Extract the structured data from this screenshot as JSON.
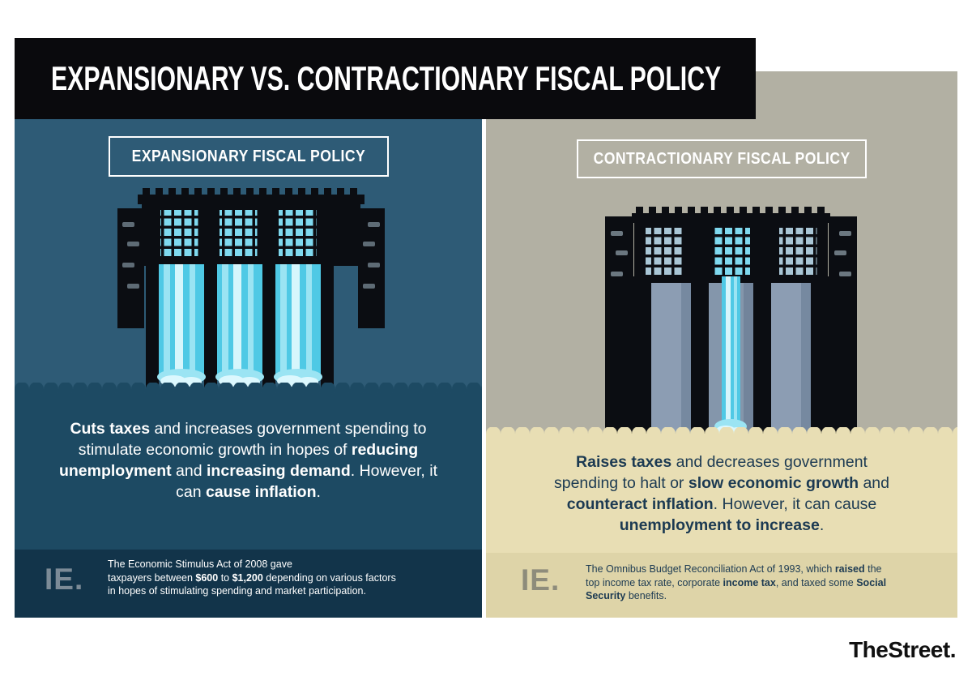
{
  "header": {
    "title": "EXPANSIONARY VS. CONTRACTIONARY FISCAL POLICY"
  },
  "expansionary": {
    "label": "EXPANSIONARY FISCAL POLICY",
    "illustration": "dam-full-flow",
    "body": [
      {
        "t": "Cuts taxes",
        "b": true
      },
      {
        "t": " and increases government spending to"
      },
      {
        "br": true
      },
      {
        "t": "stimulate economic growth in hopes of "
      },
      {
        "t": "reducing",
        "b": true
      },
      {
        "br": true
      },
      {
        "t": "unemployment",
        "b": true
      },
      {
        "t": " and "
      },
      {
        "t": "increasing demand",
        "b": true
      },
      {
        "t": ". However, it"
      },
      {
        "br": true
      },
      {
        "t": "can "
      },
      {
        "t": "cause inflation",
        "b": true
      },
      {
        "t": "."
      }
    ],
    "example_label": "IE.",
    "example": [
      {
        "t": "The Economic Stimulus Act of 2008 gave"
      },
      {
        "br": true
      },
      {
        "t": "taxpayers between "
      },
      {
        "t": "$600",
        "b": true
      },
      {
        "t": " to "
      },
      {
        "t": "$1,200",
        "b": true
      },
      {
        "t": " depending on various factors"
      },
      {
        "br": true
      },
      {
        "t": "in hopes of stimulating spending and market participation."
      }
    ]
  },
  "contractionary": {
    "label": "CONTRACTIONARY FISCAL POLICY",
    "illustration": "dam-restricted-flow",
    "body": [
      {
        "t": "Raises taxes",
        "b": true
      },
      {
        "t": " and decreases government"
      },
      {
        "br": true
      },
      {
        "t": "spending to halt or "
      },
      {
        "t": "slow economic growth",
        "b": true
      },
      {
        "t": " and"
      },
      {
        "br": true
      },
      {
        "t": "counteract inflation",
        "b": true
      },
      {
        "t": ". However, it can cause"
      },
      {
        "br": true
      },
      {
        "t": "unemployment to increase",
        "b": true
      },
      {
        "t": "."
      }
    ],
    "example_label": "IE.",
    "example": [
      {
        "t": "The Omnibus Budget Reconciliation Act of 1993, which "
      },
      {
        "t": "raised",
        "b": true
      },
      {
        "t": " the"
      },
      {
        "br": true
      },
      {
        "t": "top income tax rate, corporate "
      },
      {
        "t": "income tax",
        "b": true
      },
      {
        "t": ", and taxed some "
      },
      {
        "t": "Social",
        "b": true
      },
      {
        "br": true
      },
      {
        "t": "Security",
        "b": true
      },
      {
        "t": " benefits."
      }
    ]
  },
  "footer": {
    "brand": "TheStreet."
  },
  "colors": {
    "banner_bg": "#0A0A0D",
    "left_panel_top": "#2E5B76",
    "left_panel_lower": "#1D4A63",
    "left_example_strip": "#12344A",
    "right_panel_top": "#B2B0A3",
    "right_panel_lower": "#E8DEB4",
    "right_example_strip": "#DED4A8",
    "navy_text": "#1C3A52",
    "water_cyan": "#4FC9E5",
    "dam_black": "#0B0D12",
    "dam_slate": "#8C9DB3"
  }
}
